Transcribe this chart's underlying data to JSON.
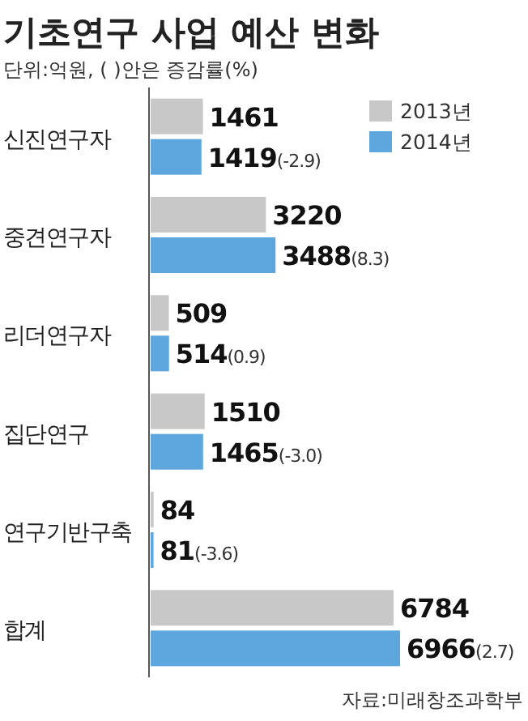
{
  "chart_data": {
    "type": "bar",
    "orientation": "horizontal",
    "title": "기초연구 사업 예산 변화",
    "subtitle": "단위:억원, ( )안은 증감률(%)",
    "categories": [
      "신진연구자",
      "중견연구자",
      "리더연구자",
      "집단연구",
      "연구기반구축",
      "합계"
    ],
    "series": [
      {
        "name": "2013년",
        "color": "#c8c8c8",
        "values": [
          1461,
          3220,
          509,
          1510,
          84,
          6784
        ],
        "value_labels": [
          "1461",
          "3220",
          "509",
          "1510",
          "84",
          "6784"
        ]
      },
      {
        "name": "2014년",
        "color": "#5ea7de",
        "values": [
          1419,
          3488,
          514,
          1465,
          81,
          6966
        ],
        "value_labels": [
          "1419(-2.9)",
          "3488(8.3)",
          "514(0.9)",
          "1465(-3.0)",
          "81(-3.6)",
          "6966(2.7)"
        ]
      }
    ],
    "relative": false,
    "legend": "top right",
    "annotations": [
      "자료:미래창조과학부"
    ]
  }
}
